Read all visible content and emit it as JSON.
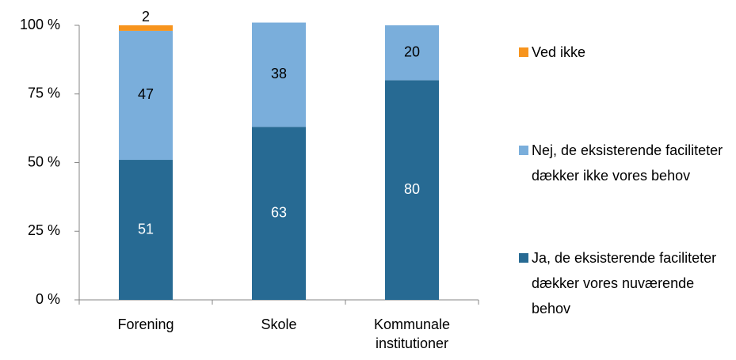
{
  "chart_data": {
    "type": "stacked_bar",
    "categories": [
      "Forening",
      "Skole",
      "Kommunale institutioner"
    ],
    "series": [
      {
        "name": "Ja, de eksisterende faciliteter dækker vores nuværende behov",
        "color": "#276a93",
        "values": [
          51,
          63,
          80
        ]
      },
      {
        "name": "Nej, de eksisterende faciliteter dækker ikke vores behov",
        "color": "#7aaedb",
        "values": [
          47,
          38,
          20
        ]
      },
      {
        "name": "Ved ikke",
        "color": "#f7941d",
        "values": [
          2,
          null,
          null
        ]
      }
    ],
    "ylim": [
      0,
      100
    ],
    "yticks": [
      {
        "value": 0,
        "label": "0 %"
      },
      {
        "value": 25,
        "label": "25 %"
      },
      {
        "value": 50,
        "label": "50 %"
      },
      {
        "value": 75,
        "label": "75 %"
      },
      {
        "value": 100,
        "label": "100 %"
      }
    ],
    "legend": "right"
  }
}
